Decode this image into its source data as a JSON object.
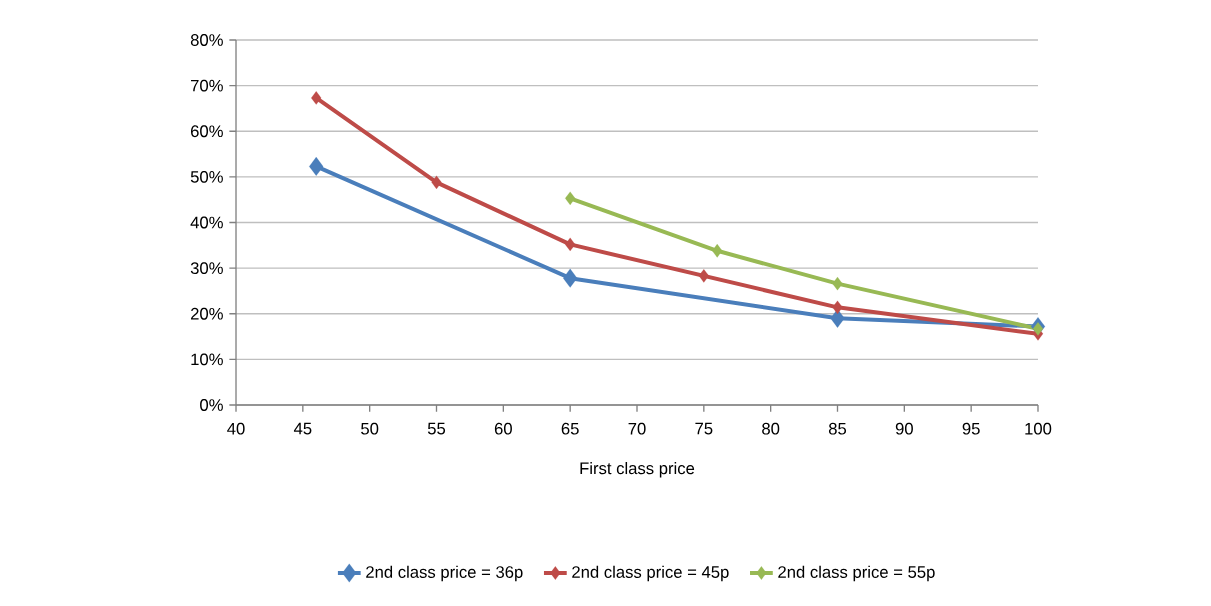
{
  "chart_data": {
    "type": "line",
    "xlabel": "First class price",
    "series": [
      {
        "name": "2nd class price = 36p",
        "color": "#4a7ebb",
        "x": [
          46,
          65,
          85,
          100
        ],
        "values": [
          52.3,
          27.8,
          19.0,
          17.2
        ]
      },
      {
        "name": "2nd class price = 45p",
        "color": "#be4b48",
        "x": [
          46,
          55,
          65,
          75,
          85,
          100
        ],
        "values": [
          67.3,
          48.8,
          35.2,
          28.3,
          21.4,
          15.6
        ]
      },
      {
        "name": "2nd class price = 55p",
        "color": "#98b954",
        "x": [
          65,
          76,
          85,
          100
        ],
        "values": [
          45.3,
          33.8,
          26.6,
          16.7
        ]
      }
    ],
    "xlim": [
      40,
      100
    ],
    "xticks": [
      40,
      45,
      50,
      55,
      60,
      65,
      70,
      75,
      80,
      85,
      90,
      95,
      100
    ],
    "ylim": [
      0,
      80
    ],
    "yticks": [
      {
        "value": 0,
        "label": "0%"
      },
      {
        "value": 10,
        "label": "10%"
      },
      {
        "value": 20,
        "label": "20%"
      },
      {
        "value": 30,
        "label": "30%"
      },
      {
        "value": 40,
        "label": "40%"
      },
      {
        "value": 50,
        "label": "50%"
      },
      {
        "value": 60,
        "label": "60%"
      },
      {
        "value": 70,
        "label": "70%"
      },
      {
        "value": 80,
        "label": "80%"
      }
    ],
    "grid": "y",
    "legend": "bottom",
    "marker": "diamond",
    "line_style": "solid"
  }
}
